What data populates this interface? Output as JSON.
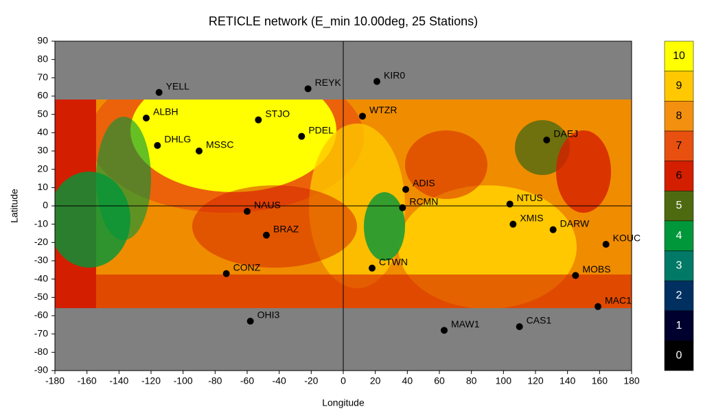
{
  "chart_data": {
    "type": "scatter",
    "title": "RETICLE network (E_min 10.00deg, 25 Stations)",
    "x_label": "Longitude",
    "y_label": "Latitude",
    "xlim": [
      -180,
      180
    ],
    "xticks": [
      -180,
      -160,
      -140,
      -120,
      -100,
      -80,
      -60,
      -40,
      -20,
      0,
      20,
      40,
      60,
      80,
      100,
      120,
      140,
      160,
      180
    ],
    "ylim": [
      -90,
      90
    ],
    "yticks": [
      -90,
      -80,
      -70,
      -60,
      -50,
      -40,
      -30,
      -20,
      -10,
      0,
      10,
      20,
      30,
      40,
      50,
      60,
      70,
      80,
      90
    ],
    "series": [
      {
        "color": "#000000",
        "labels": [
          "YELL",
          "ALBH",
          "DHLG",
          "MSSC",
          "STJO",
          "PDEL",
          "REYK",
          "KIR0",
          "WTZR",
          "DAEJ",
          "ADIS",
          "RCMN",
          "NTUS",
          "XMIS",
          "DARW",
          "KOUC",
          "NAUS",
          "BRAZ",
          "CONZ",
          "CTWN",
          "MOBS",
          "MAC1",
          "OHI3",
          "MAW1",
          "CAS1"
        ],
        "x": [
          -115,
          -123,
          -116,
          -90,
          -53,
          -26,
          -22,
          21,
          12,
          127,
          39,
          37,
          104,
          106,
          131,
          164,
          -60,
          -48,
          -73,
          18,
          145,
          159,
          -58,
          63,
          110
        ],
        "values": [
          62,
          48,
          33,
          30,
          47,
          38,
          64,
          68,
          49,
          36,
          9,
          -1,
          1,
          -10,
          -13,
          -21,
          -3,
          -16,
          -37,
          -34,
          -38,
          -55,
          -63,
          -68,
          -66
        ]
      }
    ],
    "colorbar": {
      "ticks": [
        0,
        1,
        2,
        3,
        4,
        5,
        6,
        7,
        8,
        9,
        10
      ],
      "colors": [
        "#000000",
        "#00002e",
        "#003060",
        "#007a66",
        "#00963a",
        "#4e6a10",
        "#d41e00",
        "#e85010",
        "#f49010",
        "#ffc800",
        "#ffff00"
      ]
    }
  }
}
